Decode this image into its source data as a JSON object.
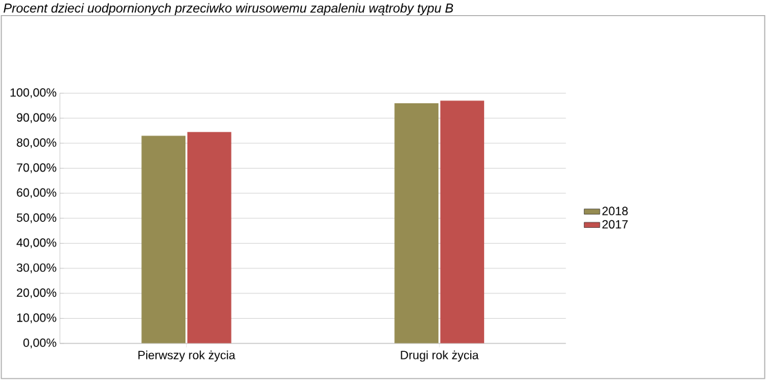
{
  "chart_data": {
    "type": "bar",
    "title": "Procent dzieci uodpornionych przeciwko wirusowemu zapaleniu wątroby typu B",
    "categories": [
      "Pierwszy rok życia",
      "Drugi rok życia"
    ],
    "series": [
      {
        "name": "2018",
        "color": "#968c52",
        "values": [
          83,
          96
        ]
      },
      {
        "name": "2017",
        "color": "#c0504d",
        "values": [
          84.5,
          97
        ]
      }
    ],
    "ylim": [
      0,
      100
    ],
    "yticks": [
      {
        "value": 0,
        "label": "0,00%"
      },
      {
        "value": 10,
        "label": "10,00%"
      },
      {
        "value": 20,
        "label": "20,00%"
      },
      {
        "value": 30,
        "label": "30,00%"
      },
      {
        "value": 40,
        "label": "40,00%"
      },
      {
        "value": 50,
        "label": "50,00%"
      },
      {
        "value": 60,
        "label": "60,00%"
      },
      {
        "value": 70,
        "label": "70,00%"
      },
      {
        "value": 80,
        "label": "80,00%"
      },
      {
        "value": 90,
        "label": "90,00%"
      },
      {
        "value": 100,
        "label": "100,00%"
      }
    ],
    "grid": "y",
    "legend": "right"
  }
}
